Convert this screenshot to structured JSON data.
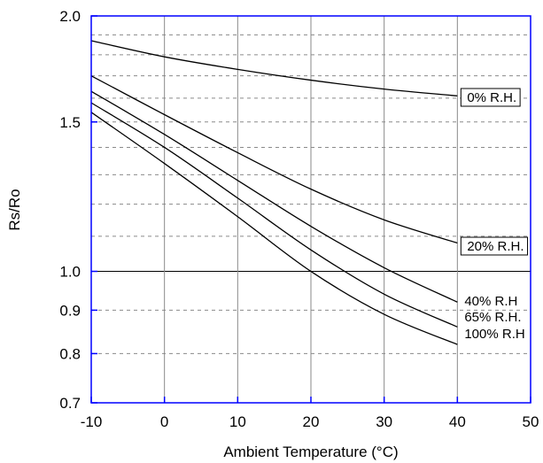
{
  "chart_data": {
    "type": "line",
    "title": "",
    "xlabel": "Ambient Temperature (°C)",
    "ylabel": "Rs/Ro",
    "xlim": [
      -10,
      50
    ],
    "ylim": [
      0.7,
      2.0
    ],
    "yscale": "log",
    "x_ticks": [
      "-10",
      "0",
      "10",
      "20",
      "30",
      "40",
      "50"
    ],
    "y_ticks": [
      {
        "value": 2.0,
        "label": "2.0"
      },
      {
        "value": 1.5,
        "label": "1.5"
      },
      {
        "value": 1.0,
        "label": "1.0"
      },
      {
        "value": 0.9,
        "label": "0.9"
      },
      {
        "value": 0.8,
        "label": "0.8"
      },
      {
        "value": 0.7,
        "label": "0.7"
      }
    ],
    "grid": "on",
    "plot_background": "#ffffff",
    "frame_color": "#0000ff",
    "line_color": "#000000",
    "series": [
      {
        "name": "0% R.H.",
        "x": [
          -10,
          0,
          10,
          20,
          30,
          40
        ],
        "y": [
          1.87,
          1.79,
          1.73,
          1.68,
          1.64,
          1.61
        ]
      },
      {
        "name": "20% R.H.",
        "x": [
          -10,
          0,
          10,
          20,
          30,
          40
        ],
        "y": [
          1.7,
          1.53,
          1.38,
          1.25,
          1.15,
          1.08
        ]
      },
      {
        "name": "40% R.H",
        "x": [
          -10,
          0,
          10,
          20,
          30,
          40
        ],
        "y": [
          1.63,
          1.45,
          1.28,
          1.13,
          1.01,
          0.92
        ]
      },
      {
        "name": "65% R.H.",
        "x": [
          -10,
          0,
          10,
          20,
          30,
          40
        ],
        "y": [
          1.58,
          1.4,
          1.22,
          1.06,
          0.94,
          0.86
        ]
      },
      {
        "name": "100% R.H",
        "x": [
          -10,
          0,
          10,
          20,
          30,
          40
        ],
        "y": [
          1.54,
          1.34,
          1.16,
          1.0,
          0.89,
          0.82
        ]
      }
    ]
  }
}
